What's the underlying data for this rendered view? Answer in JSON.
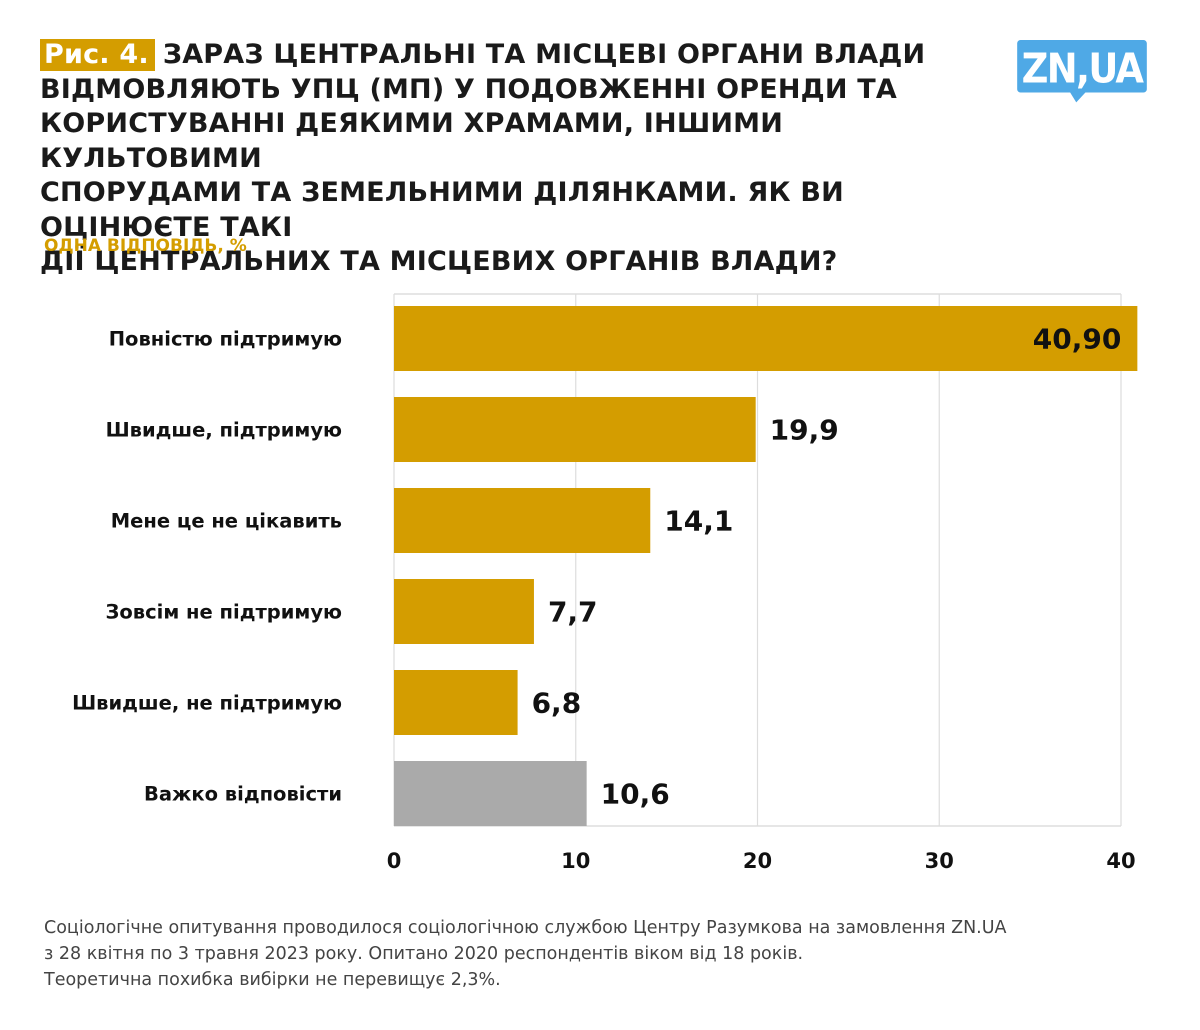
{
  "header": {
    "figure_badge": "Рис. 4.",
    "title": "ЗАРАЗ ЦЕНТРАЛЬНІ ТА МІСЦЕВІ ОРГАНИ ВЛАДИ ВІДМОВЛЯЮТЬ УПЦ (МП) У ПОДОВЖЕННІ ОРЕНДИ ТА КОРИСТУВАННІ ДЕЯКИМИ ХРАМАМИ, ІНШИМИ КУЛЬТОВИМИ СПОРУДАМИ ТА ЗЕМЕЛЬНИМИ ДІЛЯНКАМИ. ЯК ВИ ОЦІНЮЄТЕ ТАКІ ДІЇ ЦЕНТРАЛЬНИХ ТА МІСЦЕВИХ ОРГАНІВ ВЛАДИ?",
    "title_lines": [
      "ЗАРАЗ ЦЕНТРАЛЬНІ ТА МІСЦЕВІ ОРГАНИ ВЛАДИ",
      "ВІДМОВЛЯЮТЬ УПЦ (МП) У ПОДОВЖЕННІ ОРЕНДИ ТА",
      "КОРИСТУВАННІ ДЕЯКИМИ ХРАМАМИ, ІНШИМИ КУЛЬТОВИМИ",
      "СПОРУДАМИ ТА ЗЕМЕЛЬНИМИ ДІЛЯНКАМИ. ЯК ВИ ОЦІНЮЄТЕ ТАКІ",
      "ДІЇ ЦЕНТРАЛЬНИХ ТА МІСЦЕВИХ ОРГАНІВ ВЛАДИ?"
    ],
    "subtitle": "ОДНА ВІДПОВІДЬ, %"
  },
  "logo": {
    "text": "ZN,UA",
    "icon": "speech-bubble-logo",
    "color": "#4fa9e6"
  },
  "colors": {
    "accent": "#d49d00",
    "neutral": "#aaaaaa",
    "grid": "#dddddd"
  },
  "chart_data": {
    "type": "bar",
    "orientation": "horizontal",
    "title": "ЗАРАЗ ЦЕНТРАЛЬНІ ТА МІСЦЕВІ ОРГАНИ ВЛАДИ ВІДМОВЛЯЮТЬ УПЦ (МП) У ПОДОВЖЕННІ ОРЕНДИ ТА КОРИСТУВАННІ ДЕЯКИМИ ХРАМАМИ, ІНШИМИ КУЛЬТОВИМИ СПОРУДАМИ ТА ЗЕМЕЛЬНИМИ ДІЛЯНКАМИ. ЯК ВИ ОЦІНЮЄТЕ ТАКІ ДІЇ ЦЕНТРАЛЬНИХ ТА МІСЦЕВИХ ОРГАНІВ ВЛАДИ?",
    "subtitle": "ОДНА ВІДПОВІДЬ, %",
    "categories": [
      "Повністю підтримую",
      "Швидше, підтримую",
      "Мене це не цікавить",
      "Зовсім не підтримую",
      "Швидше, не підтримую",
      "Важко відповісти"
    ],
    "values": [
      40.9,
      19.9,
      14.1,
      7.7,
      6.8,
      10.6
    ],
    "value_labels": [
      "40,90",
      "19,9",
      "14,1",
      "7,7",
      "6,8",
      "10,6"
    ],
    "bar_colors": [
      "#d49d00",
      "#d49d00",
      "#d49d00",
      "#d49d00",
      "#d49d00",
      "#aaaaaa"
    ],
    "xlabel": "",
    "ylabel": "",
    "xlim": [
      0,
      40
    ],
    "xticks": [
      0,
      10,
      20,
      30,
      40
    ],
    "xtick_labels": [
      "0",
      "10",
      "20",
      "30",
      "40"
    ],
    "grid": true,
    "legend": "none"
  },
  "footnote": {
    "lines": [
      "Соціологічне опитування проводилося соціологічною службою Центру Разумкова на замовлення ZN.UA",
      "з 28 квітня по 3 травня 2023 року. Опитано 2020 респондентів віком від 18 років.",
      "Теоретична похибка вибірки не перевищує 2,3%."
    ]
  }
}
